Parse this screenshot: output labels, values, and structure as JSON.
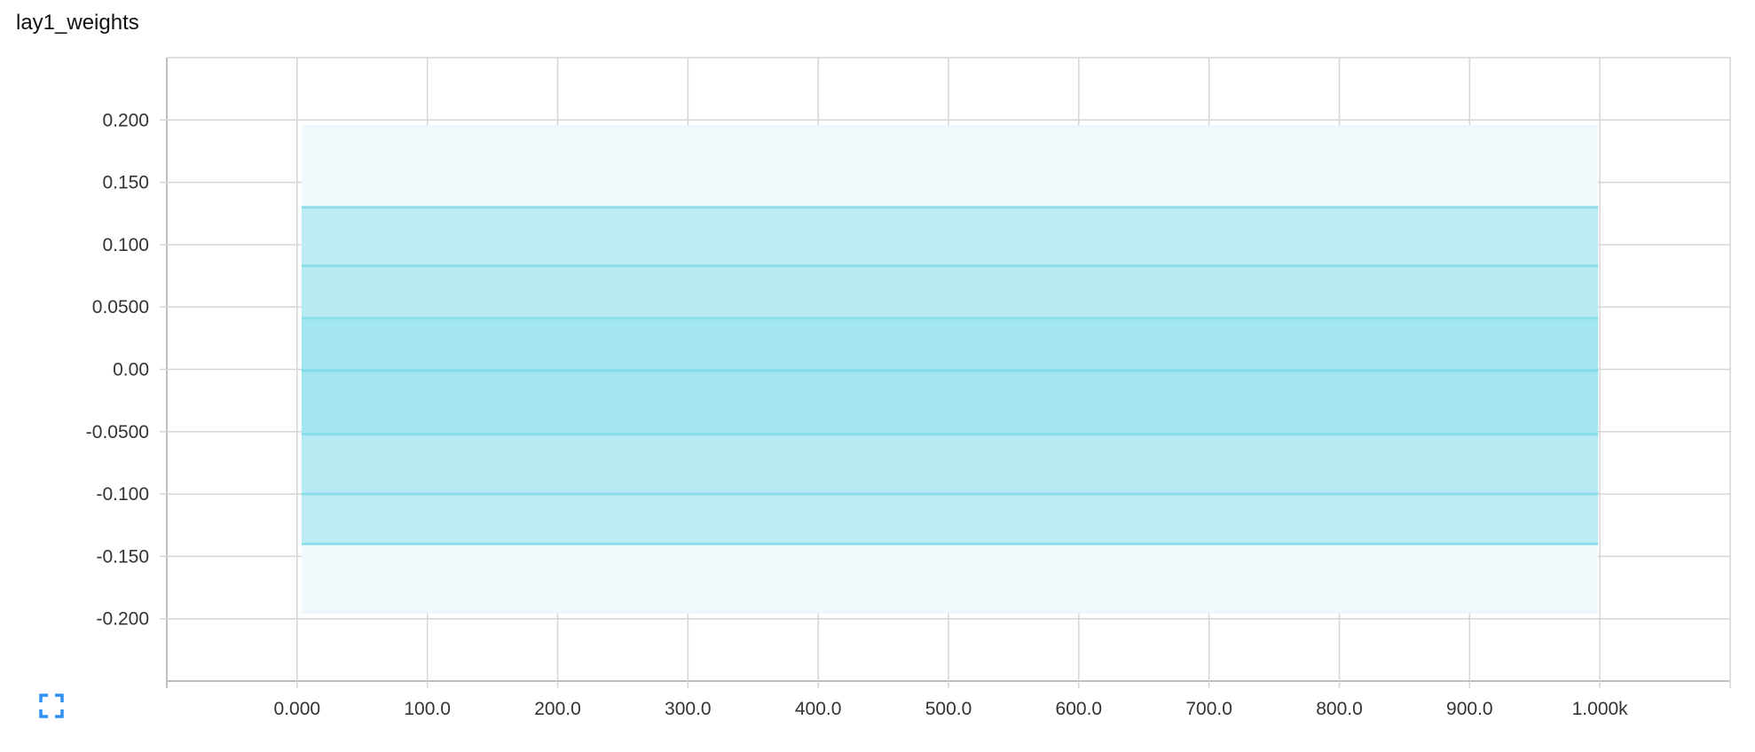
{
  "card": {
    "title": "lay1_weights",
    "expand_icon": "fullscreen-icon"
  },
  "colors": {
    "band_outer": "#f3fafd",
    "band_mid": "#b3e9f2",
    "band_inner": "#9ee4ee",
    "median_line": "#7ad9e6",
    "percentile_line": "#86dbe8",
    "grid": "#d6d6d6",
    "expand_icon": "#2f8ff2"
  },
  "chart_data": {
    "type": "area",
    "title": "lay1_weights",
    "xlabel": "",
    "ylabel": "",
    "x": [
      0,
      1000
    ],
    "xlim": [
      -100,
      1100
    ],
    "ylim": [
      -0.25,
      0.25
    ],
    "xticks": [
      "0.000",
      "100.0",
      "200.0",
      "300.0",
      "400.0",
      "500.0",
      "600.0",
      "700.0",
      "800.0",
      "900.0",
      "1.000k"
    ],
    "xtick_values": [
      0,
      100,
      200,
      300,
      400,
      500,
      600,
      700,
      800,
      900,
      1000
    ],
    "yticks": [
      "0.200",
      "0.150",
      "0.100",
      "0.0500",
      "0.00",
      "-0.0500",
      "-0.100",
      "-0.150",
      "-0.200"
    ],
    "ytick_values": [
      0.2,
      0.15,
      0.1,
      0.05,
      0.0,
      -0.05,
      -0.1,
      -0.15,
      -0.2
    ],
    "grid": true,
    "series": [
      {
        "role": "max",
        "values": [
          0.195,
          0.195
        ]
      },
      {
        "role": "p93",
        "values": [
          0.13,
          0.13
        ]
      },
      {
        "role": "p84",
        "values": [
          0.083,
          0.083
        ]
      },
      {
        "role": "p69",
        "values": [
          0.041,
          0.041
        ]
      },
      {
        "role": "p50",
        "values": [
          -0.001,
          -0.001
        ]
      },
      {
        "role": "p31",
        "values": [
          -0.052,
          -0.052
        ]
      },
      {
        "role": "p16",
        "values": [
          -0.1,
          -0.1
        ]
      },
      {
        "role": "p7",
        "values": [
          -0.14,
          -0.14
        ]
      },
      {
        "role": "min",
        "values": [
          -0.195,
          -0.195
        ]
      }
    ]
  }
}
